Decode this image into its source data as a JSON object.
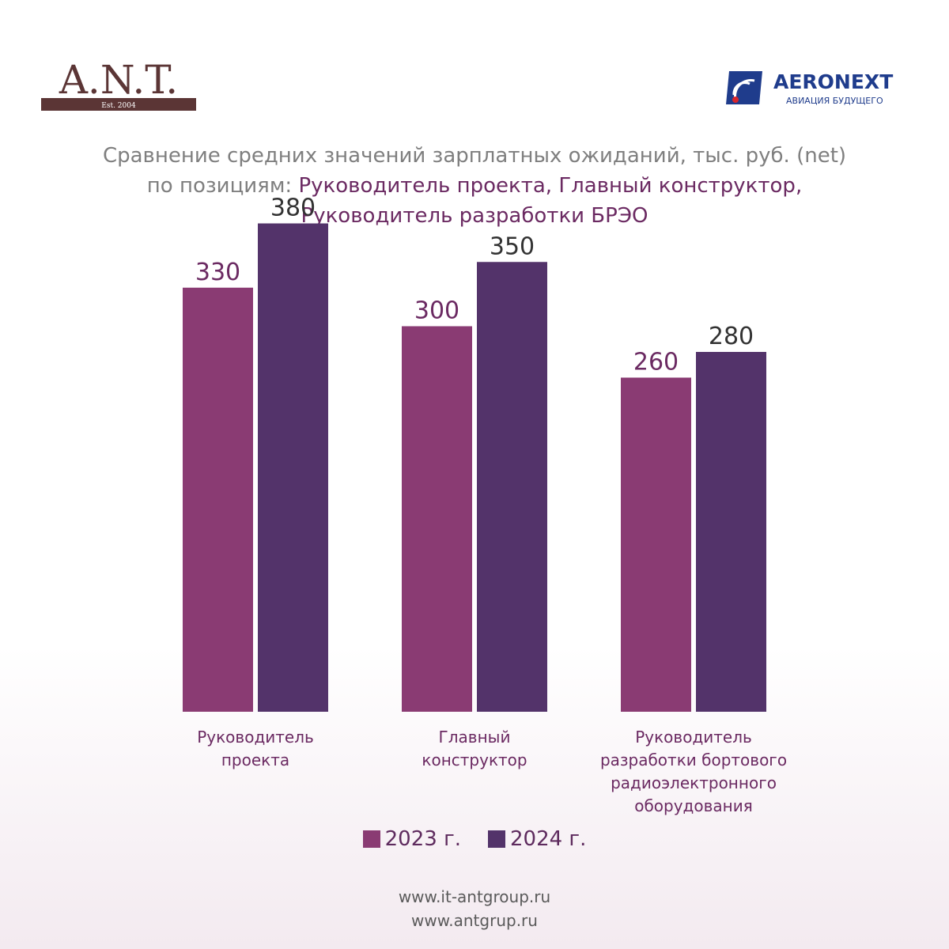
{
  "brand": {
    "ant_logo_text": "A.N.T.",
    "ant_est": "Est. 2004",
    "aero_logo_text": "AERONEXT",
    "aero_tagline": "АВИАЦИЯ БУДУЩЕГО"
  },
  "title": {
    "line1": "Сравнение средних значений зарплатных ожиданий, тыс. руб. (net)",
    "line2_prefix": "по позициям: ",
    "line2_accent": "Руководитель проекта, Главный конструктор,",
    "line3": "Руководитель разработки БРЭО"
  },
  "chart_data": {
    "type": "bar",
    "title": "Сравнение средних значений зарплатных ожиданий, тыс. руб. (net)",
    "categories": [
      [
        "Руководитель",
        "проекта"
      ],
      [
        "Главный",
        "конструктор"
      ],
      [
        "Руководитель",
        "разработки бортового",
        "радиоэлектронного",
        "оборудования"
      ]
    ],
    "series": [
      {
        "name": "2023 г.",
        "values": [
          330,
          300,
          260
        ],
        "color": "#8a3b73",
        "label_color": "#6b2a62"
      },
      {
        "name": "2024 г.",
        "values": [
          380,
          350,
          280
        ],
        "color": "#53336a",
        "label_color": "#333333"
      }
    ],
    "ylim": [
      0,
      400
    ],
    "grid": false,
    "legend_position": "bottom-center"
  },
  "footer": {
    "url1": "www.it-antgroup.ru",
    "url2": "www.antgrup.ru"
  }
}
